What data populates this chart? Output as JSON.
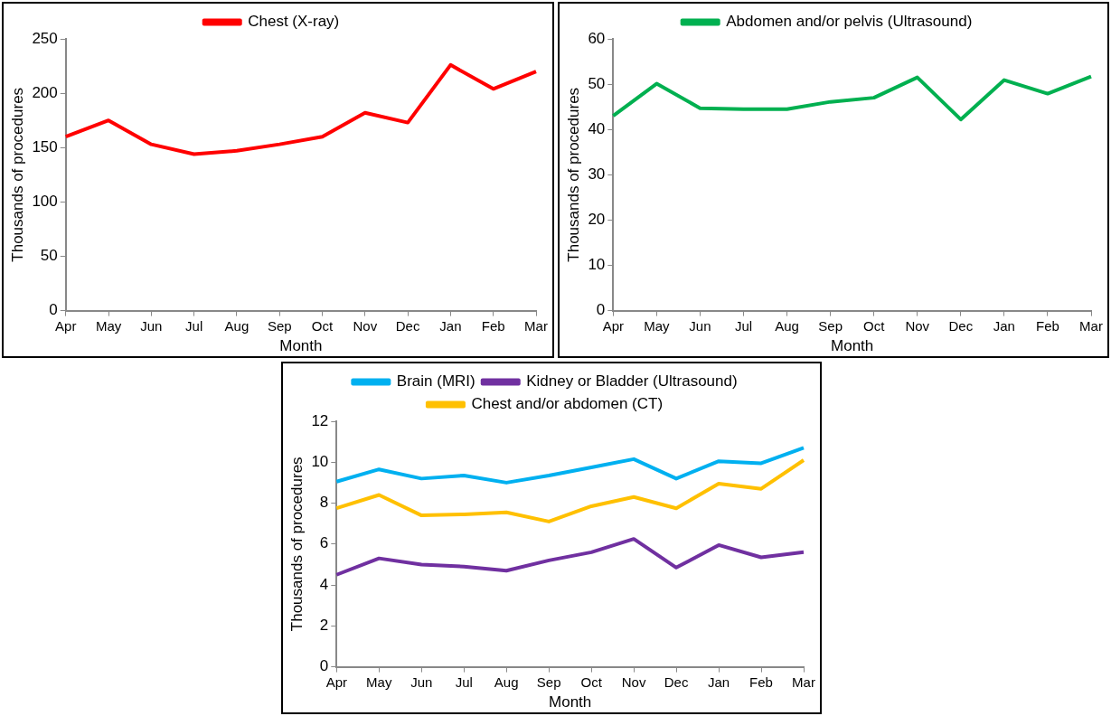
{
  "chart_data": [
    {
      "type": "line",
      "categories": [
        "Apr",
        "May",
        "Jun",
        "Jul",
        "Aug",
        "Sep",
        "Oct",
        "Nov",
        "Dec",
        "Jan",
        "Feb",
        "Mar"
      ],
      "xlabel": "Month",
      "ylabel": "Thousands of procedures",
      "ylim": [
        0,
        250
      ],
      "yticks": [
        0,
        50,
        100,
        150,
        200,
        250
      ],
      "grid": false,
      "legend": "top",
      "marker": "none",
      "series": [
        {
          "name": "Chest (X-ray)",
          "color": "#ff0000",
          "values": [
            160,
            175,
            153,
            144,
            147,
            153,
            160,
            182,
            173,
            226,
            204,
            220
          ]
        }
      ]
    },
    {
      "type": "line",
      "categories": [
        "Apr",
        "May",
        "Jun",
        "Jul",
        "Aug",
        "Sep",
        "Oct",
        "Nov",
        "Dec",
        "Jan",
        "Feb",
        "Mar"
      ],
      "xlabel": "Month",
      "ylabel": "Thousands of procedures",
      "ylim": [
        0,
        60
      ],
      "yticks": [
        0,
        10,
        20,
        30,
        40,
        50,
        60
      ],
      "grid": false,
      "legend": "top",
      "marker": "none",
      "series": [
        {
          "name": "Abdomen and/or pelvis (Ultrasound)",
          "color": "#00b050",
          "values": [
            43,
            50.1,
            44.7,
            44.5,
            44.5,
            46.1,
            47,
            51.5,
            42.2,
            50.9,
            47.9,
            51.7
          ]
        }
      ]
    },
    {
      "type": "line",
      "categories": [
        "Apr",
        "May",
        "Jun",
        "Jul",
        "Aug",
        "Sep",
        "Oct",
        "Nov",
        "Dec",
        "Jan",
        "Feb",
        "Mar"
      ],
      "xlabel": "Month",
      "ylabel": "Thousands of procedures",
      "ylim": [
        0,
        12
      ],
      "yticks": [
        0,
        2,
        4,
        6,
        8,
        10,
        12
      ],
      "grid": false,
      "legend": "top",
      "marker": "none",
      "series": [
        {
          "name": "Brain (MRI)",
          "color": "#00b0f0",
          "values": [
            9.05,
            9.65,
            9.2,
            9.35,
            9.0,
            9.35,
            9.75,
            10.15,
            9.2,
            10.05,
            9.95,
            10.7
          ]
        },
        {
          "name": "Kidney or Bladder (Ultrasound)",
          "color": "#7030a0",
          "values": [
            4.5,
            5.3,
            5.0,
            4.9,
            4.7,
            5.2,
            5.6,
            6.25,
            4.85,
            5.95,
            5.35,
            5.6
          ]
        },
        {
          "name": "Chest and/or abdomen (CT)",
          "color": "#ffc000",
          "values": [
            7.75,
            8.4,
            7.4,
            7.45,
            7.55,
            7.1,
            7.85,
            8.3,
            7.75,
            8.95,
            8.7,
            10.1
          ]
        }
      ]
    }
  ]
}
